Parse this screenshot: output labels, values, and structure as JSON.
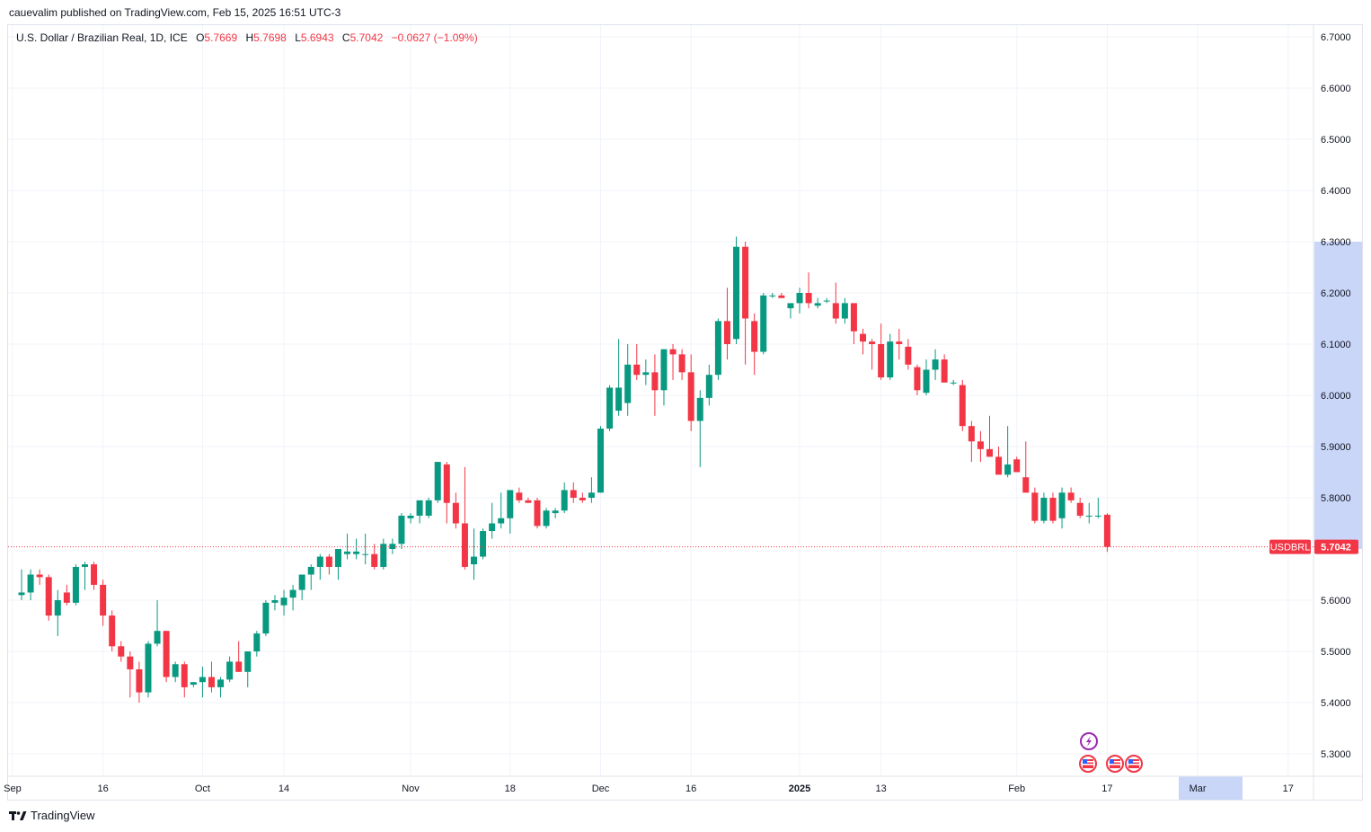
{
  "header": {
    "publisher_line": "cauevalim published on TradingView.com, Feb 15, 2025 16:51 UTC-3"
  },
  "legend": {
    "symbol_line": "U.S. Dollar / Brazilian Real, 1D, ICE",
    "o_label": "O",
    "o_value": "5.7669",
    "h_label": "H",
    "h_value": "5.7698",
    "l_label": "L",
    "l_value": "5.6943",
    "c_label": "C",
    "c_value": "5.7042",
    "change": "−0.0627 (−1.09%)"
  },
  "price_tag": {
    "symbol": "USDBRL",
    "value": "5.7042"
  },
  "footer": {
    "brand": "TradingView"
  },
  "colors": {
    "up": "#089981",
    "down": "#f23645",
    "grid": "#f0f3fa",
    "axis_highlight": "#c9d6f8",
    "price_line": "#f23645",
    "event_purple": "#9c27b0"
  },
  "chart_data": {
    "type": "candlestick",
    "title": "U.S. Dollar / Brazilian Real, 1D, ICE",
    "y_range": [
      5.25,
      6.72
    ],
    "y_ticks": [
      "6.7000",
      "6.6000",
      "6.5000",
      "6.4000",
      "6.3000",
      "6.2000",
      "6.1000",
      "6.0000",
      "5.9000",
      "5.8000",
      "5.6000",
      "5.5000",
      "5.4000",
      "5.3000"
    ],
    "x_ticks": [
      {
        "label": "Sep",
        "bold": false,
        "day_index": -1
      },
      {
        "label": "16",
        "bold": false,
        "day_index": 9
      },
      {
        "label": "Oct",
        "bold": false,
        "day_index": 20
      },
      {
        "label": "14",
        "bold": false,
        "day_index": 29
      },
      {
        "label": "Nov",
        "bold": false,
        "day_index": 43
      },
      {
        "label": "18",
        "bold": false,
        "day_index": 54
      },
      {
        "label": "Dec",
        "bold": false,
        "day_index": 64
      },
      {
        "label": "16",
        "bold": false,
        "day_index": 74
      },
      {
        "label": "2025",
        "bold": true,
        "day_index": 86
      },
      {
        "label": "13",
        "bold": false,
        "day_index": 95
      },
      {
        "label": "Feb",
        "bold": false,
        "day_index": 110
      },
      {
        "label": "17",
        "bold": false,
        "day_index": 120
      },
      {
        "label": "Mar",
        "bold": false,
        "day_index": 130
      },
      {
        "label": "17",
        "bold": false,
        "day_index": 140
      }
    ],
    "highlighted_x_range_labels": [
      "Mar"
    ],
    "highlighted_y_range": [
      5.7,
      6.3
    ],
    "last_price": 5.7042,
    "candles": [
      {
        "o": 5.61,
        "h": 5.66,
        "l": 5.6,
        "c": 5.615
      },
      {
        "o": 5.615,
        "h": 5.66,
        "l": 5.6,
        "c": 5.65
      },
      {
        "o": 5.65,
        "h": 5.66,
        "l": 5.63,
        "c": 5.645
      },
      {
        "o": 5.645,
        "h": 5.65,
        "l": 5.56,
        "c": 5.57
      },
      {
        "o": 5.57,
        "h": 5.62,
        "l": 5.53,
        "c": 5.6
      },
      {
        "o": 5.615,
        "h": 5.63,
        "l": 5.59,
        "c": 5.595
      },
      {
        "o": 5.595,
        "h": 5.67,
        "l": 5.59,
        "c": 5.665
      },
      {
        "o": 5.665,
        "h": 5.675,
        "l": 5.62,
        "c": 5.67
      },
      {
        "o": 5.67,
        "h": 5.675,
        "l": 5.62,
        "c": 5.63
      },
      {
        "o": 5.63,
        "h": 5.64,
        "l": 5.55,
        "c": 5.57
      },
      {
        "o": 5.57,
        "h": 5.58,
        "l": 5.5,
        "c": 5.51
      },
      {
        "o": 5.51,
        "h": 5.52,
        "l": 5.48,
        "c": 5.49
      },
      {
        "o": 5.49,
        "h": 5.5,
        "l": 5.41,
        "c": 5.465
      },
      {
        "o": 5.465,
        "h": 5.48,
        "l": 5.4,
        "c": 5.42
      },
      {
        "o": 5.42,
        "h": 5.52,
        "l": 5.41,
        "c": 5.515
      },
      {
        "o": 5.515,
        "h": 5.6,
        "l": 5.51,
        "c": 5.54
      },
      {
        "o": 5.54,
        "h": 5.54,
        "l": 5.44,
        "c": 5.45
      },
      {
        "o": 5.45,
        "h": 5.48,
        "l": 5.44,
        "c": 5.475
      },
      {
        "o": 5.475,
        "h": 5.48,
        "l": 5.41,
        "c": 5.43
      },
      {
        "o": 5.435,
        "h": 5.44,
        "l": 5.43,
        "c": 5.44
      },
      {
        "o": 5.44,
        "h": 5.47,
        "l": 5.41,
        "c": 5.45
      },
      {
        "o": 5.45,
        "h": 5.48,
        "l": 5.42,
        "c": 5.43
      },
      {
        "o": 5.43,
        "h": 5.45,
        "l": 5.41,
        "c": 5.445
      },
      {
        "o": 5.445,
        "h": 5.49,
        "l": 5.44,
        "c": 5.48
      },
      {
        "o": 5.48,
        "h": 5.52,
        "l": 5.46,
        "c": 5.46
      },
      {
        "o": 5.46,
        "h": 5.5,
        "l": 5.43,
        "c": 5.5
      },
      {
        "o": 5.5,
        "h": 5.54,
        "l": 5.49,
        "c": 5.535
      },
      {
        "o": 5.535,
        "h": 5.6,
        "l": 5.53,
        "c": 5.595
      },
      {
        "o": 5.595,
        "h": 5.61,
        "l": 5.58,
        "c": 5.6
      },
      {
        "o": 5.59,
        "h": 5.62,
        "l": 5.57,
        "c": 5.605
      },
      {
        "o": 5.605,
        "h": 5.63,
        "l": 5.58,
        "c": 5.62
      },
      {
        "o": 5.62,
        "h": 5.64,
        "l": 5.6,
        "c": 5.65
      },
      {
        "o": 5.65,
        "h": 5.67,
        "l": 5.62,
        "c": 5.665
      },
      {
        "o": 5.665,
        "h": 5.69,
        "l": 5.64,
        "c": 5.685
      },
      {
        "o": 5.685,
        "h": 5.69,
        "l": 5.65,
        "c": 5.665
      },
      {
        "o": 5.665,
        "h": 5.7,
        "l": 5.64,
        "c": 5.7
      },
      {
        "o": 5.69,
        "h": 5.73,
        "l": 5.68,
        "c": 5.695
      },
      {
        "o": 5.69,
        "h": 5.72,
        "l": 5.68,
        "c": 5.695
      },
      {
        "o": 5.69,
        "h": 5.73,
        "l": 5.67,
        "c": 5.69
      },
      {
        "o": 5.69,
        "h": 5.71,
        "l": 5.66,
        "c": 5.665
      },
      {
        "o": 5.665,
        "h": 5.72,
        "l": 5.66,
        "c": 5.71
      },
      {
        "o": 5.7,
        "h": 5.72,
        "l": 5.69,
        "c": 5.71
      },
      {
        "o": 5.71,
        "h": 5.77,
        "l": 5.7,
        "c": 5.765
      },
      {
        "o": 5.76,
        "h": 5.77,
        "l": 5.75,
        "c": 5.765
      },
      {
        "o": 5.765,
        "h": 5.79,
        "l": 5.75,
        "c": 5.795
      },
      {
        "o": 5.765,
        "h": 5.8,
        "l": 5.76,
        "c": 5.795
      },
      {
        "o": 5.795,
        "h": 5.87,
        "l": 5.79,
        "c": 5.87
      },
      {
        "o": 5.865,
        "h": 5.87,
        "l": 5.75,
        "c": 5.79
      },
      {
        "o": 5.79,
        "h": 5.81,
        "l": 5.74,
        "c": 5.75
      },
      {
        "o": 5.75,
        "h": 5.86,
        "l": 5.66,
        "c": 5.665
      },
      {
        "o": 5.67,
        "h": 5.74,
        "l": 5.64,
        "c": 5.685
      },
      {
        "o": 5.685,
        "h": 5.74,
        "l": 5.68,
        "c": 5.735
      },
      {
        "o": 5.735,
        "h": 5.79,
        "l": 5.72,
        "c": 5.75
      },
      {
        "o": 5.75,
        "h": 5.81,
        "l": 5.74,
        "c": 5.76
      },
      {
        "o": 5.76,
        "h": 5.81,
        "l": 5.73,
        "c": 5.815
      },
      {
        "o": 5.81,
        "h": 5.82,
        "l": 5.79,
        "c": 5.795
      },
      {
        "o": 5.795,
        "h": 5.8,
        "l": 5.79,
        "c": 5.79
      },
      {
        "o": 5.795,
        "h": 5.8,
        "l": 5.74,
        "c": 5.745
      },
      {
        "o": 5.745,
        "h": 5.78,
        "l": 5.74,
        "c": 5.775
      },
      {
        "o": 5.77,
        "h": 5.78,
        "l": 5.76,
        "c": 5.775
      },
      {
        "o": 5.775,
        "h": 5.83,
        "l": 5.77,
        "c": 5.815
      },
      {
        "o": 5.815,
        "h": 5.83,
        "l": 5.79,
        "c": 5.8
      },
      {
        "o": 5.8,
        "h": 5.81,
        "l": 5.79,
        "c": 5.795
      },
      {
        "o": 5.8,
        "h": 5.84,
        "l": 5.79,
        "c": 5.81
      },
      {
        "o": 5.81,
        "h": 5.94,
        "l": 5.81,
        "c": 5.935
      },
      {
        "o": 5.935,
        "h": 6.02,
        "l": 5.93,
        "c": 6.015
      },
      {
        "o": 5.97,
        "h": 6.11,
        "l": 5.96,
        "c": 6.015
      },
      {
        "o": 5.985,
        "h": 6.1,
        "l": 5.96,
        "c": 6.06
      },
      {
        "o": 6.06,
        "h": 6.1,
        "l": 6.03,
        "c": 6.04
      },
      {
        "o": 6.04,
        "h": 6.07,
        "l": 6.02,
        "c": 6.045
      },
      {
        "o": 6.045,
        "h": 6.08,
        "l": 5.96,
        "c": 6.01
      },
      {
        "o": 6.01,
        "h": 6.09,
        "l": 5.98,
        "c": 6.09
      },
      {
        "o": 6.09,
        "h": 6.1,
        "l": 6.03,
        "c": 6.08
      },
      {
        "o": 6.08,
        "h": 6.09,
        "l": 6.03,
        "c": 6.045
      },
      {
        "o": 6.045,
        "h": 6.08,
        "l": 5.93,
        "c": 5.95
      },
      {
        "o": 5.95,
        "h": 6.01,
        "l": 5.86,
        "c": 5.995
      },
      {
        "o": 5.995,
        "h": 6.06,
        "l": 5.98,
        "c": 6.04
      },
      {
        "o": 6.04,
        "h": 6.15,
        "l": 6.03,
        "c": 6.145
      },
      {
        "o": 6.145,
        "h": 6.21,
        "l": 6.07,
        "c": 6.1
      },
      {
        "o": 6.11,
        "h": 6.31,
        "l": 6.1,
        "c": 6.29
      },
      {
        "o": 6.29,
        "h": 6.3,
        "l": 6.06,
        "c": 6.15
      },
      {
        "o": 6.145,
        "h": 6.16,
        "l": 6.04,
        "c": 6.085
      },
      {
        "o": 6.085,
        "h": 6.2,
        "l": 6.08,
        "c": 6.195
      },
      {
        "o": 6.195,
        "h": 6.2,
        "l": 6.19,
        "c": 6.195
      },
      {
        "o": 6.195,
        "h": 6.2,
        "l": 6.19,
        "c": 6.19
      },
      {
        "o": 6.17,
        "h": 6.18,
        "l": 6.15,
        "c": 6.18
      },
      {
        "o": 6.18,
        "h": 6.21,
        "l": 6.16,
        "c": 6.2
      },
      {
        "o": 6.2,
        "h": 6.24,
        "l": 6.17,
        "c": 6.18
      },
      {
        "o": 6.175,
        "h": 6.19,
        "l": 6.17,
        "c": 6.18
      },
      {
        "o": 6.185,
        "h": 6.19,
        "l": 6.18,
        "c": 6.185
      },
      {
        "o": 6.18,
        "h": 6.22,
        "l": 6.14,
        "c": 6.15
      },
      {
        "o": 6.15,
        "h": 6.19,
        "l": 6.14,
        "c": 6.18
      },
      {
        "o": 6.18,
        "h": 6.18,
        "l": 6.1,
        "c": 6.125
      },
      {
        "o": 6.12,
        "h": 6.13,
        "l": 6.08,
        "c": 6.105
      },
      {
        "o": 6.105,
        "h": 6.11,
        "l": 6.05,
        "c": 6.1
      },
      {
        "o": 6.1,
        "h": 6.14,
        "l": 6.03,
        "c": 6.035
      },
      {
        "o": 6.035,
        "h": 6.12,
        "l": 6.03,
        "c": 6.105
      },
      {
        "o": 6.105,
        "h": 6.13,
        "l": 6.07,
        "c": 6.1
      },
      {
        "o": 6.095,
        "h": 6.11,
        "l": 6.05,
        "c": 6.06
      },
      {
        "o": 6.055,
        "h": 6.06,
        "l": 6.0,
        "c": 6.01
      },
      {
        "o": 6.005,
        "h": 6.07,
        "l": 6.0,
        "c": 6.05
      },
      {
        "o": 6.05,
        "h": 6.09,
        "l": 6.03,
        "c": 6.07
      },
      {
        "o": 6.07,
        "h": 6.08,
        "l": 6.03,
        "c": 6.025
      },
      {
        "o": 6.025,
        "h": 6.03,
        "l": 6.02,
        "c": 6.025
      },
      {
        "o": 6.02,
        "h": 6.03,
        "l": 5.93,
        "c": 5.94
      },
      {
        "o": 5.94,
        "h": 5.95,
        "l": 5.87,
        "c": 5.91
      },
      {
        "o": 5.91,
        "h": 5.93,
        "l": 5.87,
        "c": 5.895
      },
      {
        "o": 5.895,
        "h": 5.96,
        "l": 5.88,
        "c": 5.88
      },
      {
        "o": 5.88,
        "h": 5.9,
        "l": 5.85,
        "c": 5.845
      },
      {
        "o": 5.845,
        "h": 5.94,
        "l": 5.84,
        "c": 5.865
      },
      {
        "o": 5.875,
        "h": 5.88,
        "l": 5.85,
        "c": 5.85
      },
      {
        "o": 5.84,
        "h": 5.91,
        "l": 5.81,
        "c": 5.81
      },
      {
        "o": 5.81,
        "h": 5.82,
        "l": 5.75,
        "c": 5.755
      },
      {
        "o": 5.755,
        "h": 5.81,
        "l": 5.75,
        "c": 5.8
      },
      {
        "o": 5.8,
        "h": 5.81,
        "l": 5.75,
        "c": 5.755
      },
      {
        "o": 5.76,
        "h": 5.82,
        "l": 5.74,
        "c": 5.81
      },
      {
        "o": 5.81,
        "h": 5.82,
        "l": 5.79,
        "c": 5.795
      },
      {
        "o": 5.79,
        "h": 5.8,
        "l": 5.76,
        "c": 5.765
      },
      {
        "o": 5.765,
        "h": 5.79,
        "l": 5.75,
        "c": 5.765
      },
      {
        "o": 5.765,
        "h": 5.8,
        "l": 5.76,
        "c": 5.765
      },
      {
        "o": 5.7669,
        "h": 5.7698,
        "l": 5.6943,
        "c": 5.7042
      }
    ]
  }
}
